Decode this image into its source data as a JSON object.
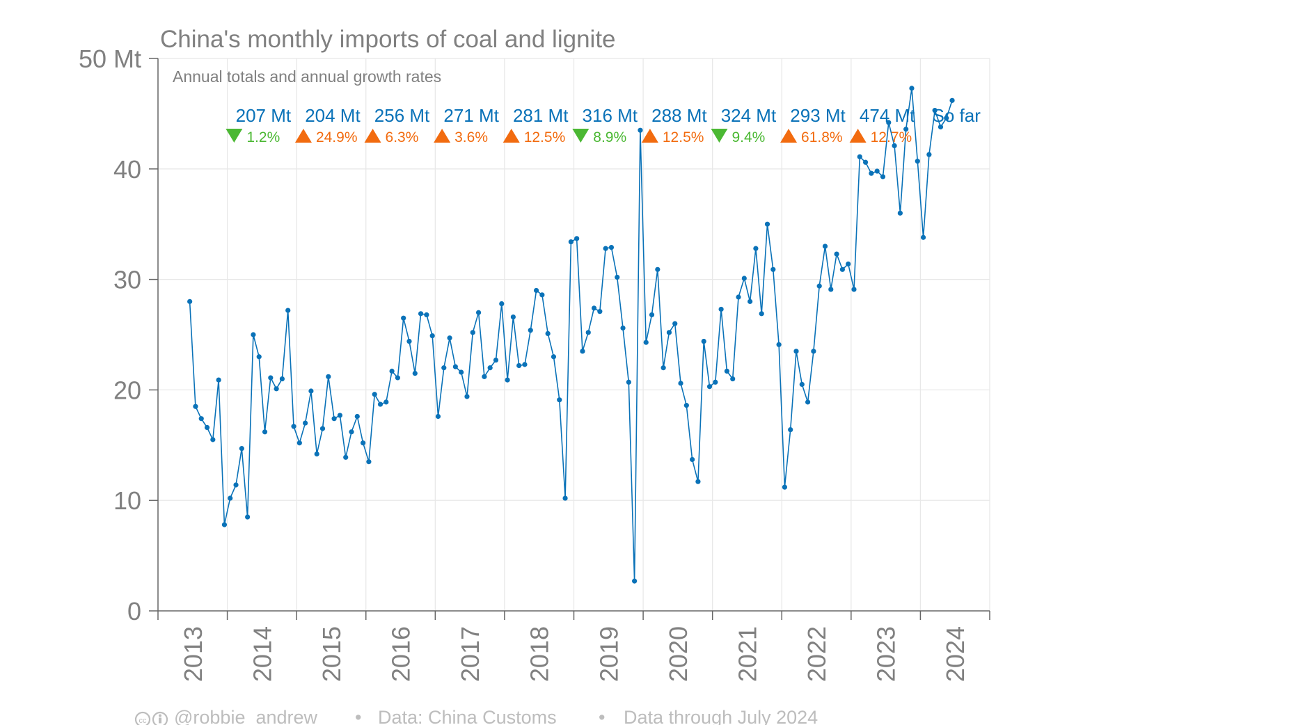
{
  "title": "China's monthly imports of coal and lignite",
  "subtitle": "Annual totals and annual growth rates",
  "footer": {
    "cc_icon": "cc-by-icon",
    "author": "@robbie_andrew",
    "separator": "•",
    "source": "Data: China Customs",
    "through": "Data through July 2024"
  },
  "colors": {
    "series": "#0a72b8",
    "up": "#f26b0f",
    "down": "#4bb833",
    "text": "#808080",
    "grid": "#e8e8e8"
  },
  "annual": [
    {
      "year": 2014,
      "total": "207 Mt",
      "dir": "down",
      "growth": "1.2%"
    },
    {
      "year": 2015,
      "total": "204 Mt",
      "dir": "up",
      "growth": "24.9%"
    },
    {
      "year": 2016,
      "total": "256 Mt",
      "dir": "up",
      "growth": "6.3%"
    },
    {
      "year": 2017,
      "total": "271 Mt",
      "dir": "up",
      "growth": "3.6%"
    },
    {
      "year": 2018,
      "total": "281 Mt",
      "dir": "up",
      "growth": "12.5%"
    },
    {
      "year": 2019,
      "total": "316 Mt",
      "dir": "down",
      "growth": "8.9%"
    },
    {
      "year": 2020,
      "total": "288 Mt",
      "dir": "up",
      "growth": "12.5%"
    },
    {
      "year": 2021,
      "total": "324 Mt",
      "dir": "down",
      "growth": "9.4%"
    },
    {
      "year": 2022,
      "total": "293 Mt",
      "dir": "up",
      "growth": "61.8%"
    },
    {
      "year": 2023,
      "total": "474 Mt",
      "dir": "up",
      "growth": "12.7%"
    },
    {
      "year": 2024,
      "total": "So far",
      "dir": null,
      "growth": ""
    }
  ],
  "chart_data": {
    "type": "line",
    "title": "China's monthly imports of coal and lignite",
    "subtitle": "Annual totals and annual growth rates",
    "xlabel": "",
    "ylabel": "",
    "y_unit_label": "50 Mt",
    "ylim": [
      0,
      50
    ],
    "yticks": [
      0,
      10,
      20,
      30,
      40,
      50
    ],
    "ytick_labels": [
      "0",
      "10",
      "20",
      "30",
      "40",
      "50 Mt"
    ],
    "xlim": [
      "2013-01",
      "2024-12"
    ],
    "xticks": [
      "2013",
      "2014",
      "2015",
      "2016",
      "2017",
      "2018",
      "2019",
      "2020",
      "2021",
      "2022",
      "2023",
      "2024"
    ],
    "grid": true,
    "markers": true,
    "series": [
      {
        "start": "2013-06",
        "frequency": "monthly",
        "values": [
          28.0,
          18.5,
          17.4,
          16.6,
          15.5,
          20.9,
          7.8,
          10.2,
          11.4,
          14.7,
          8.5,
          25.0,
          23.0,
          16.2,
          21.1,
          20.1,
          21.0,
          27.2,
          16.7,
          15.2,
          17.0,
          19.9,
          14.2,
          16.5,
          21.2,
          17.4,
          17.7,
          13.9,
          16.2,
          17.6,
          15.2,
          13.5,
          19.6,
          18.7,
          18.9,
          21.7,
          21.1,
          26.5,
          24.4,
          21.5,
          26.9,
          26.8,
          24.9,
          17.6,
          22.0,
          24.7,
          22.1,
          21.6,
          19.4,
          25.2,
          27.0,
          21.2,
          22.0,
          22.7,
          27.8,
          20.9,
          26.6,
          22.2,
          22.3,
          25.4,
          29.0,
          28.6,
          25.1,
          23.0,
          19.1,
          10.2,
          33.4,
          33.7,
          23.5,
          25.2,
          27.4,
          27.1,
          32.8,
          32.9,
          30.2,
          25.6,
          20.7,
          2.7,
          43.5,
          24.3,
          26.8,
          30.9,
          22.0,
          25.2,
          26.0,
          20.6,
          18.6,
          13.7,
          11.7,
          24.4,
          20.3,
          20.7,
          27.3,
          21.7,
          21.0,
          28.4,
          30.1,
          28.0,
          32.8,
          26.9,
          35.0,
          30.9,
          24.1,
          11.2,
          16.4,
          23.5,
          20.5,
          18.9,
          23.5,
          29.4,
          33.0,
          29.1,
          32.3,
          30.9,
          31.4,
          29.1,
          41.1,
          40.6,
          39.6,
          39.8,
          39.3,
          44.2,
          42.1,
          36.0,
          43.6,
          47.3,
          40.7,
          33.8,
          41.3,
          45.3,
          43.8,
          44.6,
          46.2
        ]
      }
    ]
  }
}
